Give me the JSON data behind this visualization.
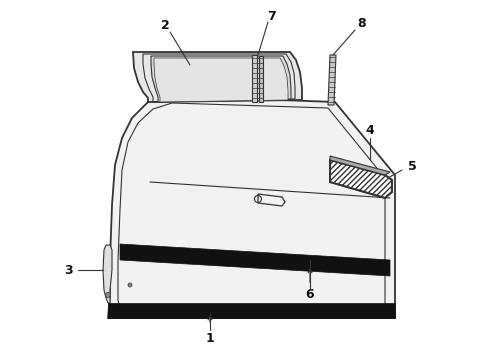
{
  "bg_color": "#ffffff",
  "line_color": "#333333",
  "label_color": "#111111",
  "figsize": [
    4.9,
    3.6
  ],
  "dpi": 100,
  "door_body_face": "#f2f2f2",
  "window_face": "#e0e0e0",
  "black_strip": "#111111",
  "hatch_face": "#ffffff",
  "seal_face": "#cccccc"
}
